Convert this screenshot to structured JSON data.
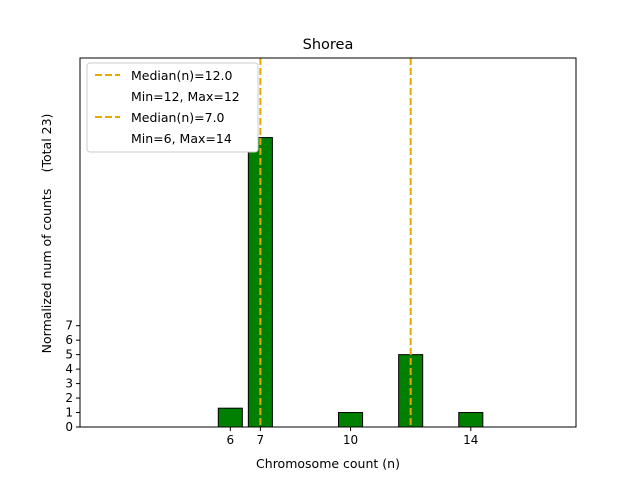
{
  "chart_data": {
    "type": "bar",
    "title": "Shorea",
    "xlabel": "Chromosome count (n)",
    "ylabel": "Normalized num of counts",
    "ylabel_note": "(Total 23)",
    "xlim": [
      1,
      17.5
    ],
    "ylim": [
      0,
      25.5
    ],
    "xticks": [
      6,
      7,
      10,
      14
    ],
    "yticks": [
      0,
      1,
      2,
      3,
      4,
      5,
      6,
      7
    ],
    "grid": false,
    "bar_color": "#008000",
    "bar_edge": "#000000",
    "bars": [
      {
        "x": 6,
        "value": 1.3
      },
      {
        "x": 7,
        "value": 20
      },
      {
        "x": 10,
        "value": 1
      },
      {
        "x": 12,
        "value": 5
      },
      {
        "x": 14,
        "value": 1
      }
    ],
    "bar_width": 0.8,
    "median_lines": [
      {
        "x": 12,
        "color": "#e6a800"
      },
      {
        "x": 7,
        "color": "#e6a800"
      }
    ],
    "baseline_end": 15.75,
    "legend": {
      "position": "top-left",
      "entries": [
        {
          "label": "Median(n)=12.0",
          "has_line": true,
          "color": "#e6a800"
        },
        {
          "label": "Min=12, Max=12",
          "has_line": false
        },
        {
          "label": "Median(n)=7.0",
          "has_line": true,
          "color": "#e6a800"
        },
        {
          "label": "Min=6, Max=14",
          "has_line": false
        }
      ]
    }
  }
}
